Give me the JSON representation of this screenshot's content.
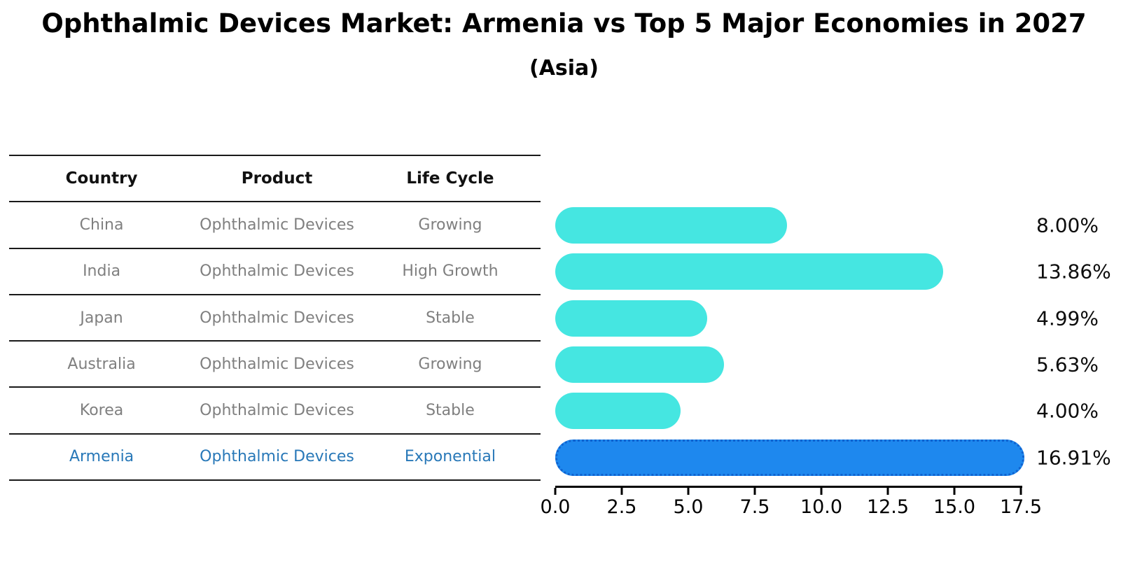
{
  "title": "Ophthalmic Devices Market: Armenia vs Top 5 Major Economies in 2027",
  "subtitle": "(Asia)",
  "table": {
    "headers": [
      "Country",
      "Product",
      "Life Cycle"
    ],
    "rows": [
      {
        "country": "China",
        "product": "Ophthalmic Devices",
        "life_cycle": "Growing"
      },
      {
        "country": "India",
        "product": "Ophthalmic Devices",
        "life_cycle": "High Growth"
      },
      {
        "country": "Japan",
        "product": "Ophthalmic Devices",
        "life_cycle": "Stable"
      },
      {
        "country": "Australia",
        "product": "Ophthalmic Devices",
        "life_cycle": "Growing"
      },
      {
        "country": "Korea",
        "product": "Ophthalmic Devices",
        "life_cycle": "Stable"
      },
      {
        "country": "Armenia",
        "product": "Ophthalmic Devices",
        "life_cycle": "Exponential"
      }
    ]
  },
  "chart_data": {
    "type": "bar",
    "orientation": "horizontal",
    "title": "Ophthalmic Devices Market: Armenia vs Top 5 Major Economies in 2027 (Asia)",
    "categories": [
      "China",
      "India",
      "Japan",
      "Australia",
      "Korea",
      "Armenia"
    ],
    "values": [
      8.0,
      13.86,
      4.99,
      5.63,
      4.0,
      16.91
    ],
    "value_labels": [
      "8.00%",
      "13.86%",
      "4.99%",
      "5.63%",
      "4.00%",
      "16.91%"
    ],
    "xlim": [
      0,
      17.5
    ],
    "x_ticks": [
      "0.0",
      "2.5",
      "5.0",
      "7.5",
      "10.0",
      "12.5",
      "15.0",
      "17.5"
    ],
    "grid": false,
    "legend": "none",
    "bar_color": "#45e6e1",
    "highlight_color": "#1e88ee",
    "highlight_index": 5,
    "highlight_text_color": "#2878b8"
  }
}
